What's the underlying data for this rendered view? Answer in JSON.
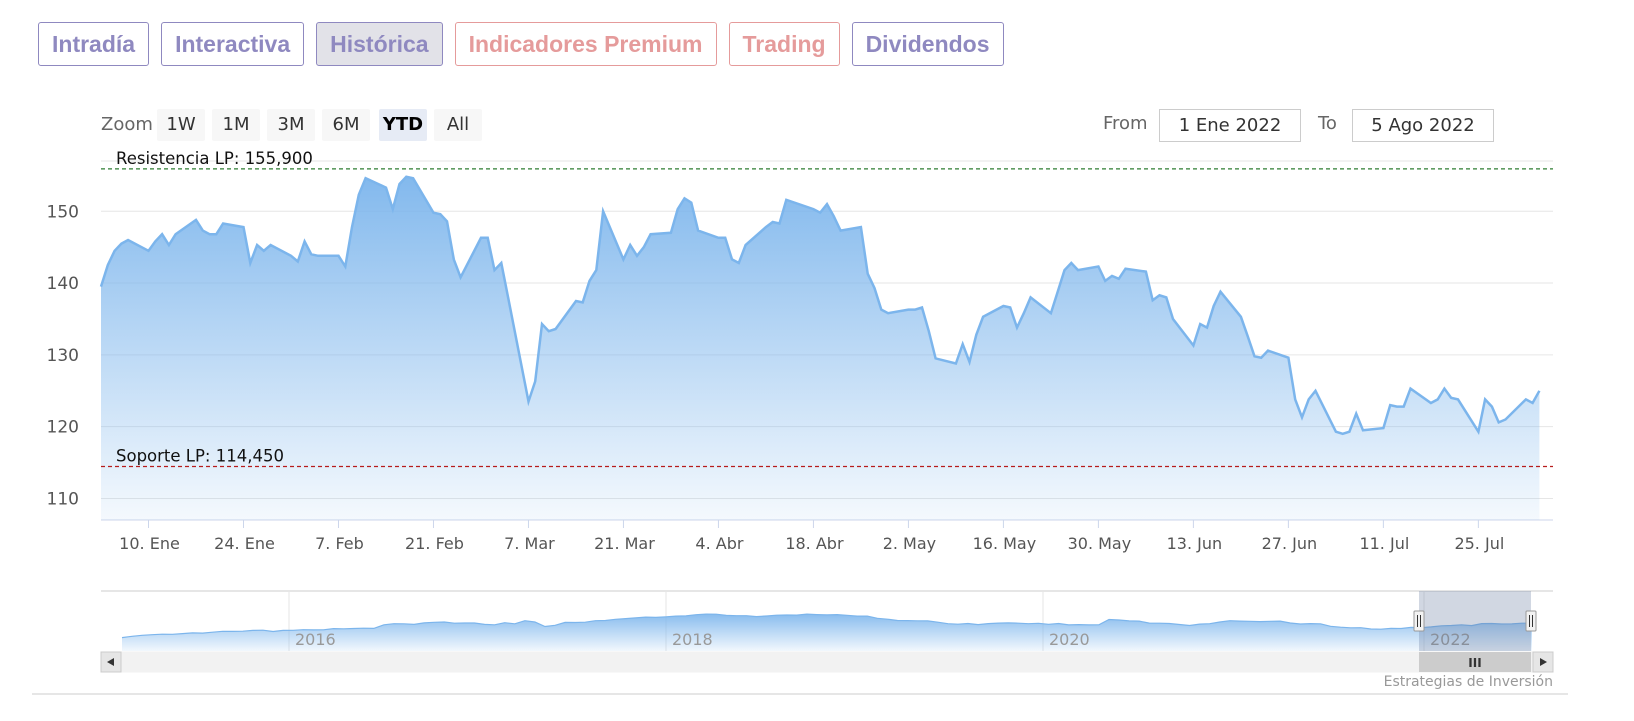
{
  "tabs": [
    {
      "label": "Intradía",
      "color": "purple",
      "active": false
    },
    {
      "label": "Interactiva",
      "color": "purple",
      "active": false
    },
    {
      "label": "Histórica",
      "color": "purple",
      "active": true
    },
    {
      "label": "Indicadores Premium",
      "color": "red",
      "active": false
    },
    {
      "label": "Trading",
      "color": "red",
      "active": false
    },
    {
      "label": "Dividendos",
      "color": "purple",
      "active": false
    }
  ],
  "colors": {
    "purple": "#8f89c0",
    "red": "#e59b9b",
    "series": "#7cb5ec",
    "resistance": "#2e7d32",
    "support": "#b71c1c"
  },
  "range_selector": {
    "zoom_label": "Zoom",
    "buttons": [
      "1W",
      "1M",
      "3M",
      "6M",
      "YTD",
      "All"
    ],
    "selected": "YTD",
    "from_label": "From",
    "from_value": "1 Ene 2022",
    "to_label": "To",
    "to_value": "5 Ago 2022"
  },
  "credits": "Estrategias de Inversión",
  "chart_data": {
    "type": "area",
    "ylim": [
      107,
      157
    ],
    "yticks": [
      110,
      120,
      130,
      140,
      150
    ],
    "grid": true,
    "x_start": "2022-01-03",
    "x_end": "2022-08-05",
    "xticks": [
      {
        "label": "10. Ene",
        "date": "2022-01-10"
      },
      {
        "label": "24. Ene",
        "date": "2022-01-24"
      },
      {
        "label": "7. Feb",
        "date": "2022-02-07"
      },
      {
        "label": "21. Feb",
        "date": "2022-02-21"
      },
      {
        "label": "7. Mar",
        "date": "2022-03-07"
      },
      {
        "label": "21. Mar",
        "date": "2022-03-21"
      },
      {
        "label": "4. Abr",
        "date": "2022-04-04"
      },
      {
        "label": "18. Abr",
        "date": "2022-04-18"
      },
      {
        "label": "2. May",
        "date": "2022-05-02"
      },
      {
        "label": "16. May",
        "date": "2022-05-16"
      },
      {
        "label": "30. May",
        "date": "2022-05-30"
      },
      {
        "label": "13. Jun",
        "date": "2022-06-13"
      },
      {
        "label": "27. Jun",
        "date": "2022-06-27"
      },
      {
        "label": "11. Jul",
        "date": "2022-07-11"
      },
      {
        "label": "25. Jul",
        "date": "2022-07-25"
      }
    ],
    "plot_lines": [
      {
        "label": "Resistencia LP: 155,900",
        "value": 155.9,
        "color": "#2e7d32"
      },
      {
        "label": "Soporte LP: 114,450",
        "value": 114.45,
        "color": "#b71c1c"
      }
    ],
    "series": [
      {
        "x": "2022-01-03",
        "y": 139.5
      },
      {
        "x": "2022-01-04",
        "y": 142.5
      },
      {
        "x": "2022-01-05",
        "y": 144.5
      },
      {
        "x": "2022-01-06",
        "y": 145.5
      },
      {
        "x": "2022-01-07",
        "y": 146.0
      },
      {
        "x": "2022-01-10",
        "y": 144.5
      },
      {
        "x": "2022-01-11",
        "y": 145.8
      },
      {
        "x": "2022-01-12",
        "y": 146.8
      },
      {
        "x": "2022-01-13",
        "y": 145.3
      },
      {
        "x": "2022-01-14",
        "y": 146.8
      },
      {
        "x": "2022-01-17",
        "y": 148.8
      },
      {
        "x": "2022-01-18",
        "y": 147.3
      },
      {
        "x": "2022-01-19",
        "y": 146.8
      },
      {
        "x": "2022-01-20",
        "y": 146.8
      },
      {
        "x": "2022-01-21",
        "y": 148.3
      },
      {
        "x": "2022-01-24",
        "y": 147.8
      },
      {
        "x": "2022-01-25",
        "y": 142.8
      },
      {
        "x": "2022-01-26",
        "y": 145.3
      },
      {
        "x": "2022-01-27",
        "y": 144.5
      },
      {
        "x": "2022-01-28",
        "y": 145.3
      },
      {
        "x": "2022-01-31",
        "y": 143.8
      },
      {
        "x": "2022-02-01",
        "y": 143.0
      },
      {
        "x": "2022-02-02",
        "y": 145.8
      },
      {
        "x": "2022-02-03",
        "y": 144.0
      },
      {
        "x": "2022-02-04",
        "y": 143.8
      },
      {
        "x": "2022-02-07",
        "y": 143.8
      },
      {
        "x": "2022-02-08",
        "y": 142.3
      },
      {
        "x": "2022-02-09",
        "y": 147.8
      },
      {
        "x": "2022-02-10",
        "y": 152.3
      },
      {
        "x": "2022-02-11",
        "y": 154.6
      },
      {
        "x": "2022-02-14",
        "y": 153.3
      },
      {
        "x": "2022-02-15",
        "y": 150.3
      },
      {
        "x": "2022-02-16",
        "y": 153.8
      },
      {
        "x": "2022-02-17",
        "y": 154.8
      },
      {
        "x": "2022-02-18",
        "y": 154.6
      },
      {
        "x": "2022-02-21",
        "y": 149.8
      },
      {
        "x": "2022-02-22",
        "y": 149.6
      },
      {
        "x": "2022-02-23",
        "y": 148.6
      },
      {
        "x": "2022-02-24",
        "y": 143.3
      },
      {
        "x": "2022-02-25",
        "y": 140.8
      },
      {
        "x": "2022-02-28",
        "y": 146.3
      },
      {
        "x": "2022-03-01",
        "y": 146.3
      },
      {
        "x": "2022-03-02",
        "y": 141.8
      },
      {
        "x": "2022-03-03",
        "y": 142.8
      },
      {
        "x": "2022-03-04",
        "y": 138.0
      },
      {
        "x": "2022-03-07",
        "y": 123.5
      },
      {
        "x": "2022-03-08",
        "y": 126.3
      },
      {
        "x": "2022-03-09",
        "y": 134.3
      },
      {
        "x": "2022-03-10",
        "y": 133.3
      },
      {
        "x": "2022-03-11",
        "y": 133.6
      },
      {
        "x": "2022-03-14",
        "y": 137.5
      },
      {
        "x": "2022-03-15",
        "y": 137.3
      },
      {
        "x": "2022-03-16",
        "y": 140.3
      },
      {
        "x": "2022-03-17",
        "y": 141.8
      },
      {
        "x": "2022-03-18",
        "y": 150.0
      },
      {
        "x": "2022-03-21",
        "y": 143.3
      },
      {
        "x": "2022-03-22",
        "y": 145.3
      },
      {
        "x": "2022-03-23",
        "y": 143.8
      },
      {
        "x": "2022-03-24",
        "y": 145.0
      },
      {
        "x": "2022-03-25",
        "y": 146.8
      },
      {
        "x": "2022-03-28",
        "y": 147.0
      },
      {
        "x": "2022-03-29",
        "y": 150.3
      },
      {
        "x": "2022-03-30",
        "y": 151.8
      },
      {
        "x": "2022-03-31",
        "y": 151.2
      },
      {
        "x": "2022-04-01",
        "y": 147.3
      },
      {
        "x": "2022-04-04",
        "y": 146.3
      },
      {
        "x": "2022-04-05",
        "y": 146.3
      },
      {
        "x": "2022-04-06",
        "y": 143.3
      },
      {
        "x": "2022-04-07",
        "y": 142.8
      },
      {
        "x": "2022-04-08",
        "y": 145.3
      },
      {
        "x": "2022-04-11",
        "y": 147.8
      },
      {
        "x": "2022-04-12",
        "y": 148.5
      },
      {
        "x": "2022-04-13",
        "y": 148.3
      },
      {
        "x": "2022-04-14",
        "y": 151.6
      },
      {
        "x": "2022-04-18",
        "y": 150.3
      },
      {
        "x": "2022-04-19",
        "y": 149.8
      },
      {
        "x": "2022-04-20",
        "y": 151.0
      },
      {
        "x": "2022-04-21",
        "y": 149.3
      },
      {
        "x": "2022-04-22",
        "y": 147.3
      },
      {
        "x": "2022-04-25",
        "y": 147.8
      },
      {
        "x": "2022-04-26",
        "y": 141.3
      },
      {
        "x": "2022-04-27",
        "y": 139.3
      },
      {
        "x": "2022-04-28",
        "y": 136.3
      },
      {
        "x": "2022-04-29",
        "y": 135.8
      },
      {
        "x": "2022-05-02",
        "y": 136.3
      },
      {
        "x": "2022-05-03",
        "y": 136.3
      },
      {
        "x": "2022-05-04",
        "y": 136.6
      },
      {
        "x": "2022-05-05",
        "y": 133.3
      },
      {
        "x": "2022-05-06",
        "y": 129.5
      },
      {
        "x": "2022-05-09",
        "y": 128.8
      },
      {
        "x": "2022-05-10",
        "y": 131.5
      },
      {
        "x": "2022-05-11",
        "y": 129.0
      },
      {
        "x": "2022-05-12",
        "y": 132.8
      },
      {
        "x": "2022-05-13",
        "y": 135.3
      },
      {
        "x": "2022-05-16",
        "y": 136.8
      },
      {
        "x": "2022-05-17",
        "y": 136.6
      },
      {
        "x": "2022-05-18",
        "y": 133.8
      },
      {
        "x": "2022-05-19",
        "y": 135.8
      },
      {
        "x": "2022-05-20",
        "y": 138.0
      },
      {
        "x": "2022-05-23",
        "y": 135.8
      },
      {
        "x": "2022-05-24",
        "y": 138.8
      },
      {
        "x": "2022-05-25",
        "y": 141.8
      },
      {
        "x": "2022-05-26",
        "y": 142.8
      },
      {
        "x": "2022-05-27",
        "y": 141.8
      },
      {
        "x": "2022-05-30",
        "y": 142.3
      },
      {
        "x": "2022-05-31",
        "y": 140.3
      },
      {
        "x": "2022-06-01",
        "y": 141.0
      },
      {
        "x": "2022-06-02",
        "y": 140.6
      },
      {
        "x": "2022-06-03",
        "y": 142.0
      },
      {
        "x": "2022-06-06",
        "y": 141.6
      },
      {
        "x": "2022-06-07",
        "y": 137.6
      },
      {
        "x": "2022-06-08",
        "y": 138.3
      },
      {
        "x": "2022-06-09",
        "y": 138.0
      },
      {
        "x": "2022-06-10",
        "y": 135.0
      },
      {
        "x": "2022-06-13",
        "y": 131.3
      },
      {
        "x": "2022-06-14",
        "y": 134.3
      },
      {
        "x": "2022-06-15",
        "y": 133.8
      },
      {
        "x": "2022-06-16",
        "y": 136.8
      },
      {
        "x": "2022-06-17",
        "y": 138.8
      },
      {
        "x": "2022-06-20",
        "y": 135.3
      },
      {
        "x": "2022-06-21",
        "y": 132.6
      },
      {
        "x": "2022-06-22",
        "y": 129.8
      },
      {
        "x": "2022-06-23",
        "y": 129.6
      },
      {
        "x": "2022-06-24",
        "y": 130.6
      },
      {
        "x": "2022-06-27",
        "y": 129.6
      },
      {
        "x": "2022-06-28",
        "y": 123.8
      },
      {
        "x": "2022-06-29",
        "y": 121.3
      },
      {
        "x": "2022-06-30",
        "y": 123.8
      },
      {
        "x": "2022-07-01",
        "y": 125.0
      },
      {
        "x": "2022-07-04",
        "y": 119.3
      },
      {
        "x": "2022-07-05",
        "y": 119.0
      },
      {
        "x": "2022-07-06",
        "y": 119.3
      },
      {
        "x": "2022-07-07",
        "y": 121.8
      },
      {
        "x": "2022-07-08",
        "y": 119.5
      },
      {
        "x": "2022-07-11",
        "y": 119.8
      },
      {
        "x": "2022-07-12",
        "y": 123.0
      },
      {
        "x": "2022-07-13",
        "y": 122.8
      },
      {
        "x": "2022-07-14",
        "y": 122.8
      },
      {
        "x": "2022-07-15",
        "y": 125.3
      },
      {
        "x": "2022-07-18",
        "y": 123.3
      },
      {
        "x": "2022-07-19",
        "y": 123.8
      },
      {
        "x": "2022-07-20",
        "y": 125.3
      },
      {
        "x": "2022-07-21",
        "y": 124.0
      },
      {
        "x": "2022-07-22",
        "y": 123.8
      },
      {
        "x": "2022-07-25",
        "y": 119.3
      },
      {
        "x": "2022-07-26",
        "y": 123.8
      },
      {
        "x": "2022-07-27",
        "y": 122.8
      },
      {
        "x": "2022-07-28",
        "y": 120.6
      },
      {
        "x": "2022-07-29",
        "y": 121.0
      },
      {
        "x": "2022-08-01",
        "y": 123.8
      },
      {
        "x": "2022-08-02",
        "y": 123.3
      },
      {
        "x": "2022-08-03",
        "y": 125.0
      }
    ]
  },
  "navigator": {
    "year_labels": [
      "2016",
      "2018",
      "2020",
      "2022"
    ],
    "scrollbar_grip": "III"
  }
}
